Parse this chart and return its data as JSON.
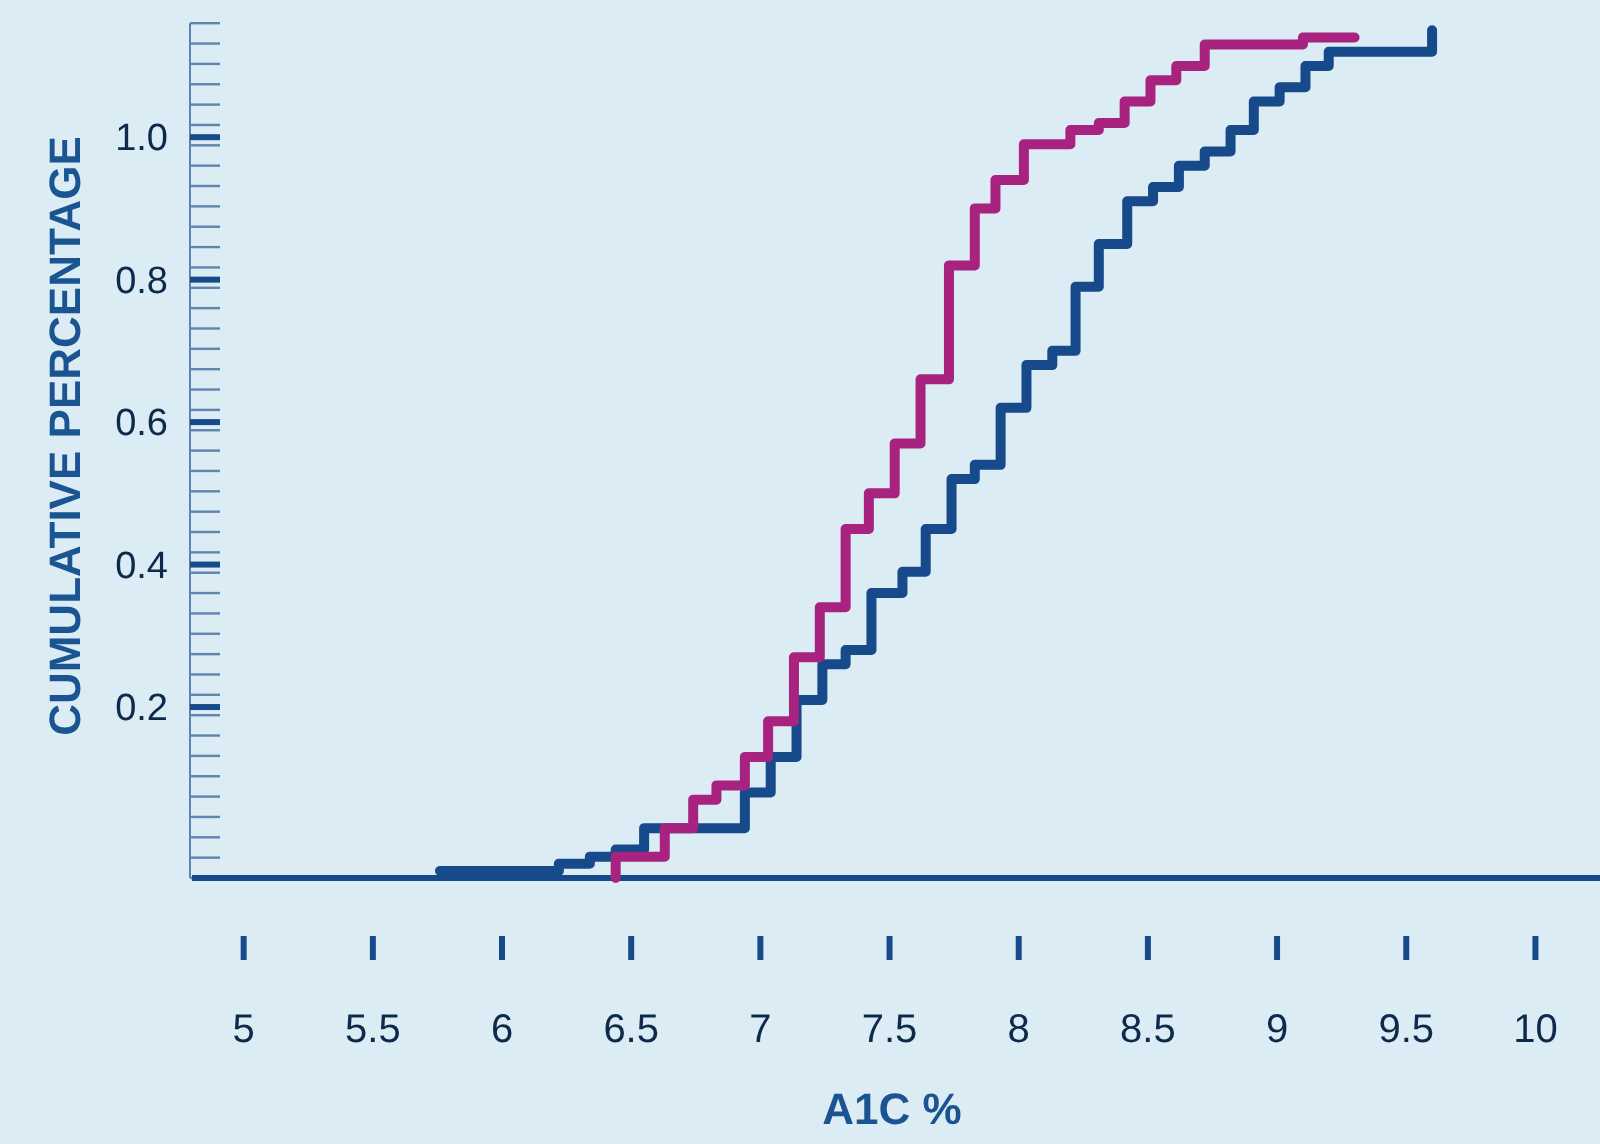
{
  "chart_data": {
    "type": "step",
    "xlabel": "A1C %",
    "ylabel": "CUMULATIVE PERCENTAGE",
    "xlim": [
      4.8,
      10.25
    ],
    "ylim": [
      -0.04,
      1.16
    ],
    "xticks": [
      5,
      5.5,
      6,
      6.5,
      7,
      7.5,
      8,
      8.5,
      9,
      9.5,
      10
    ],
    "yticks": [
      0.2,
      0.4,
      0.6,
      0.8,
      {
        "value": 1.0,
        "label": "1.0"
      }
    ],
    "series": [
      {
        "color": "#174a8b",
        "x": [
          5.76,
          6.22,
          6.34,
          6.44,
          6.55,
          6.94,
          7.04,
          7.14,
          7.24,
          7.33,
          7.43,
          7.55,
          7.64,
          7.74,
          7.83,
          7.93,
          8.03,
          8.13,
          8.22,
          8.31,
          8.42,
          8.52,
          8.62,
          8.72,
          8.82,
          8.91,
          9.01,
          9.11,
          9.2,
          9.6
        ],
        "values": [
          -0.03,
          -0.02,
          -0.01,
          0.0,
          0.03,
          0.08,
          0.13,
          0.21,
          0.26,
          0.28,
          0.36,
          0.39,
          0.45,
          0.52,
          0.54,
          0.62,
          0.68,
          0.7,
          0.79,
          0.85,
          0.91,
          0.93,
          0.96,
          0.98,
          1.01,
          1.05,
          1.07,
          1.1,
          1.12,
          1.15
        ]
      },
      {
        "color": "#a8237f",
        "x": [
          6.44,
          6.44,
          6.63,
          6.74,
          6.83,
          6.94,
          7.03,
          7.13,
          7.23,
          7.33,
          7.42,
          7.52,
          7.62,
          7.73,
          7.83,
          7.91,
          8.02,
          8.2,
          8.31,
          8.41,
          8.51,
          8.61,
          8.72,
          9.1,
          9.3
        ],
        "values": [
          -0.04,
          -0.01,
          0.03,
          0.07,
          0.09,
          0.13,
          0.18,
          0.27,
          0.34,
          0.45,
          0.5,
          0.57,
          0.66,
          0.82,
          0.9,
          0.94,
          0.99,
          1.01,
          1.02,
          1.05,
          1.08,
          1.1,
          1.13,
          1.14,
          1.14
        ]
      }
    ]
  }
}
